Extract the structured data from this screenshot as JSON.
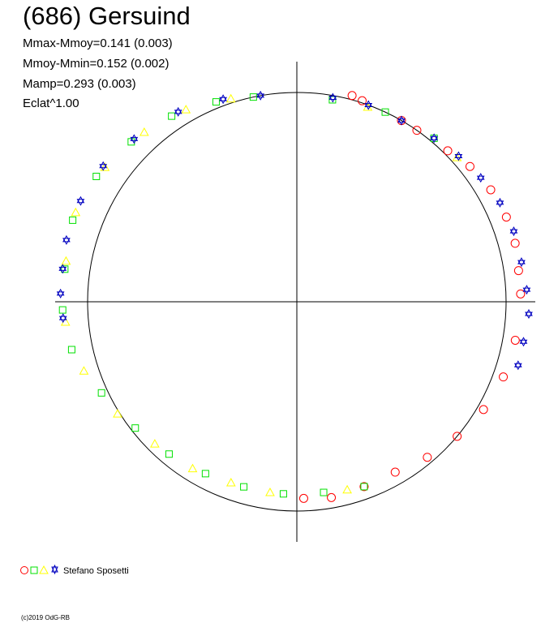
{
  "title": "(686) Gersuind",
  "stats": [
    "Mmax-Mmoy=0.141 (0.003)",
    "Mmoy-Mmin=0.152 (0.002)",
    "Mamp=0.293 (0.003)",
    "Eclat^1.00"
  ],
  "legend": {
    "observer": "Stefano Sposetti",
    "symbols": [
      {
        "shape": "circle",
        "color": "#ff0000"
      },
      {
        "shape": "square",
        "color": "#00e000"
      },
      {
        "shape": "triangle",
        "color": "#ffff00"
      },
      {
        "shape": "star",
        "color": "#0000c0"
      }
    ]
  },
  "copyright": "(c)2019 OdG-RB",
  "chart_data": {
    "type": "scatter",
    "projection": "polar",
    "reference_circle_radius": 1.0,
    "axes": "crosshair",
    "grid": false,
    "series": [
      {
        "marker": "circle",
        "color": "#ff0000",
        "points": [
          {
            "angle": 60,
            "r": 1.0
          },
          {
            "angle": 75,
            "r": 1.02
          },
          {
            "angle": 72,
            "r": 1.01
          },
          {
            "angle": 55,
            "r": 1.0
          },
          {
            "angle": 45,
            "r": 1.02
          },
          {
            "angle": 38,
            "r": 1.05
          },
          {
            "angle": 30,
            "r": 1.07
          },
          {
            "angle": 22,
            "r": 1.08
          },
          {
            "angle": 15,
            "r": 1.08
          },
          {
            "angle": 8,
            "r": 1.07
          },
          {
            "angle": 2,
            "r": 1.07
          },
          {
            "angle": -10,
            "r": 1.06
          },
          {
            "angle": -20,
            "r": 1.05
          },
          {
            "angle": -30,
            "r": 1.03
          },
          {
            "angle": -40,
            "r": 1.0
          },
          {
            "angle": -50,
            "r": 0.97
          },
          {
            "angle": -60,
            "r": 0.94
          },
          {
            "angle": -70,
            "r": 0.94
          },
          {
            "angle": -80,
            "r": 0.95
          },
          {
            "angle": -88,
            "r": 0.94
          }
        ]
      },
      {
        "marker": "square",
        "color": "#00e000",
        "points": [
          {
            "angle": 102,
            "r": 1.0
          },
          {
            "angle": 112,
            "r": 1.03
          },
          {
            "angle": 124,
            "r": 1.07
          },
          {
            "angle": 136,
            "r": 1.1
          },
          {
            "angle": 148,
            "r": 1.13
          },
          {
            "angle": 160,
            "r": 1.14
          },
          {
            "angle": 172,
            "r": 1.12
          },
          {
            "angle": 182,
            "r": 1.12
          },
          {
            "angle": 192,
            "r": 1.1
          },
          {
            "angle": 205,
            "r": 1.03
          },
          {
            "angle": 218,
            "r": 0.98
          },
          {
            "angle": 230,
            "r": 0.95
          },
          {
            "angle": 242,
            "r": 0.93
          },
          {
            "angle": 254,
            "r": 0.92
          },
          {
            "angle": 266,
            "r": 0.92
          },
          {
            "angle": 278,
            "r": 0.92
          },
          {
            "angle": 290,
            "r": 0.94
          },
          {
            "angle": 80,
            "r": 0.98
          },
          {
            "angle": 65,
            "r": 1.0
          },
          {
            "angle": 50,
            "r": 1.02
          }
        ]
      },
      {
        "marker": "triangle",
        "color": "#ffff00",
        "points": [
          {
            "angle": 108,
            "r": 1.02
          },
          {
            "angle": 120,
            "r": 1.06
          },
          {
            "angle": 132,
            "r": 1.09
          },
          {
            "angle": 145,
            "r": 1.12
          },
          {
            "angle": 158,
            "r": 1.14
          },
          {
            "angle": 170,
            "r": 1.12
          },
          {
            "angle": 185,
            "r": 1.11
          },
          {
            "angle": 198,
            "r": 1.07
          },
          {
            "angle": 212,
            "r": 1.01
          },
          {
            "angle": 225,
            "r": 0.96
          },
          {
            "angle": 238,
            "r": 0.94
          },
          {
            "angle": 250,
            "r": 0.92
          },
          {
            "angle": 262,
            "r": 0.92
          },
          {
            "angle": 285,
            "r": 0.93
          },
          {
            "angle": 70,
            "r": 0.99
          },
          {
            "angle": 42,
            "r": 1.03
          }
        ]
      },
      {
        "marker": "star",
        "color": "#0000c0",
        "points": [
          {
            "angle": 100,
            "r": 1.0
          },
          {
            "angle": 110,
            "r": 1.03
          },
          {
            "angle": 122,
            "r": 1.07
          },
          {
            "angle": 135,
            "r": 1.1
          },
          {
            "angle": 145,
            "r": 1.13
          },
          {
            "angle": 155,
            "r": 1.14
          },
          {
            "angle": 165,
            "r": 1.14
          },
          {
            "angle": 172,
            "r": 1.13
          },
          {
            "angle": 178,
            "r": 1.13
          },
          {
            "angle": 184,
            "r": 1.12
          },
          {
            "angle": 80,
            "r": 0.99
          },
          {
            "angle": 70,
            "r": 1.0
          },
          {
            "angle": 60,
            "r": 1.0
          },
          {
            "angle": 50,
            "r": 1.02
          },
          {
            "angle": 42,
            "r": 1.04
          },
          {
            "angle": 34,
            "r": 1.06
          },
          {
            "angle": 26,
            "r": 1.08
          },
          {
            "angle": 18,
            "r": 1.09
          },
          {
            "angle": 10,
            "r": 1.09
          },
          {
            "angle": 3,
            "r": 1.1
          },
          {
            "angle": -3,
            "r": 1.11
          },
          {
            "angle": -10,
            "r": 1.1
          },
          {
            "angle": -16,
            "r": 1.1
          }
        ]
      }
    ]
  }
}
